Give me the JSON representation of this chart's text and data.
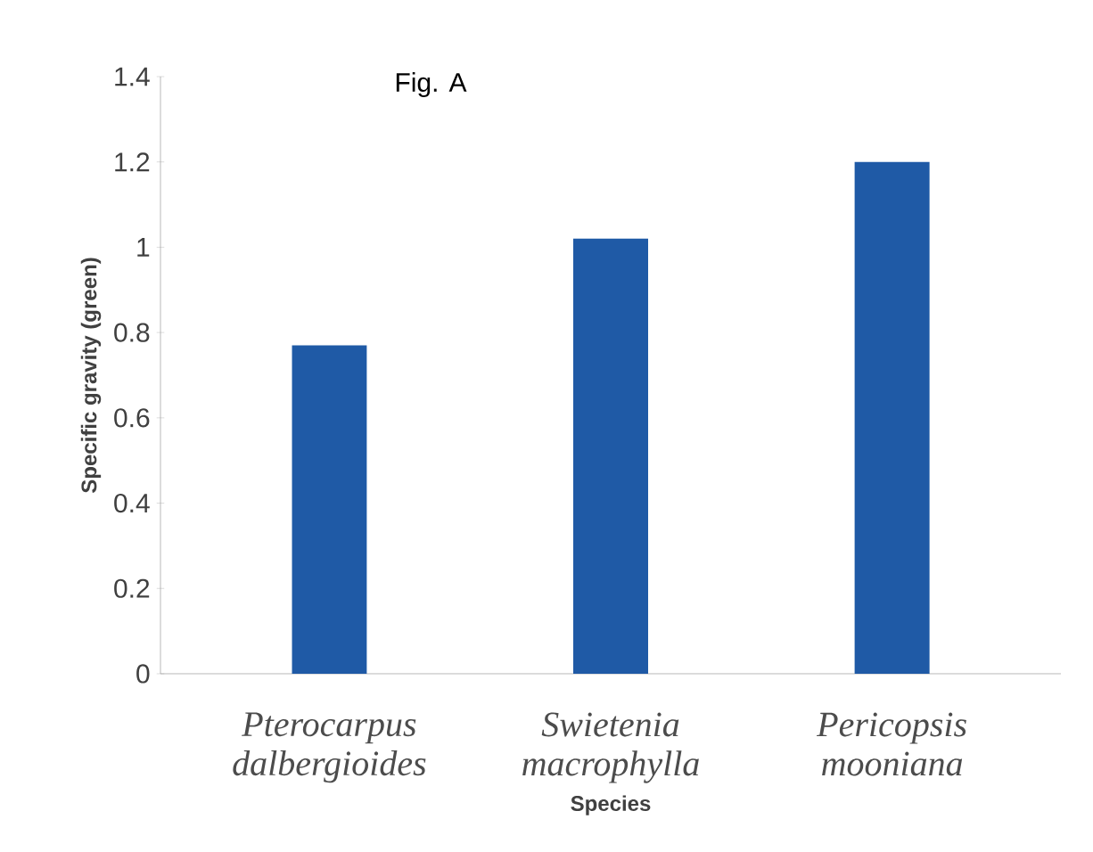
{
  "chart_data": {
    "type": "bar",
    "title": "Fig. A",
    "xlabel": "Species",
    "ylabel": "Specific gravity (green)",
    "categories": [
      "Pterocarpus dalbergioides",
      "Swietenia macrophylla",
      "Pericopsis mooniana"
    ],
    "values": [
      0.77,
      1.02,
      1.2
    ],
    "color": "#1f5aa6",
    "ylim": [
      0,
      1.4
    ],
    "yticks": [
      0,
      0.2,
      0.4,
      0.6,
      0.8,
      1,
      1.2,
      1.4
    ],
    "grid": false
  }
}
